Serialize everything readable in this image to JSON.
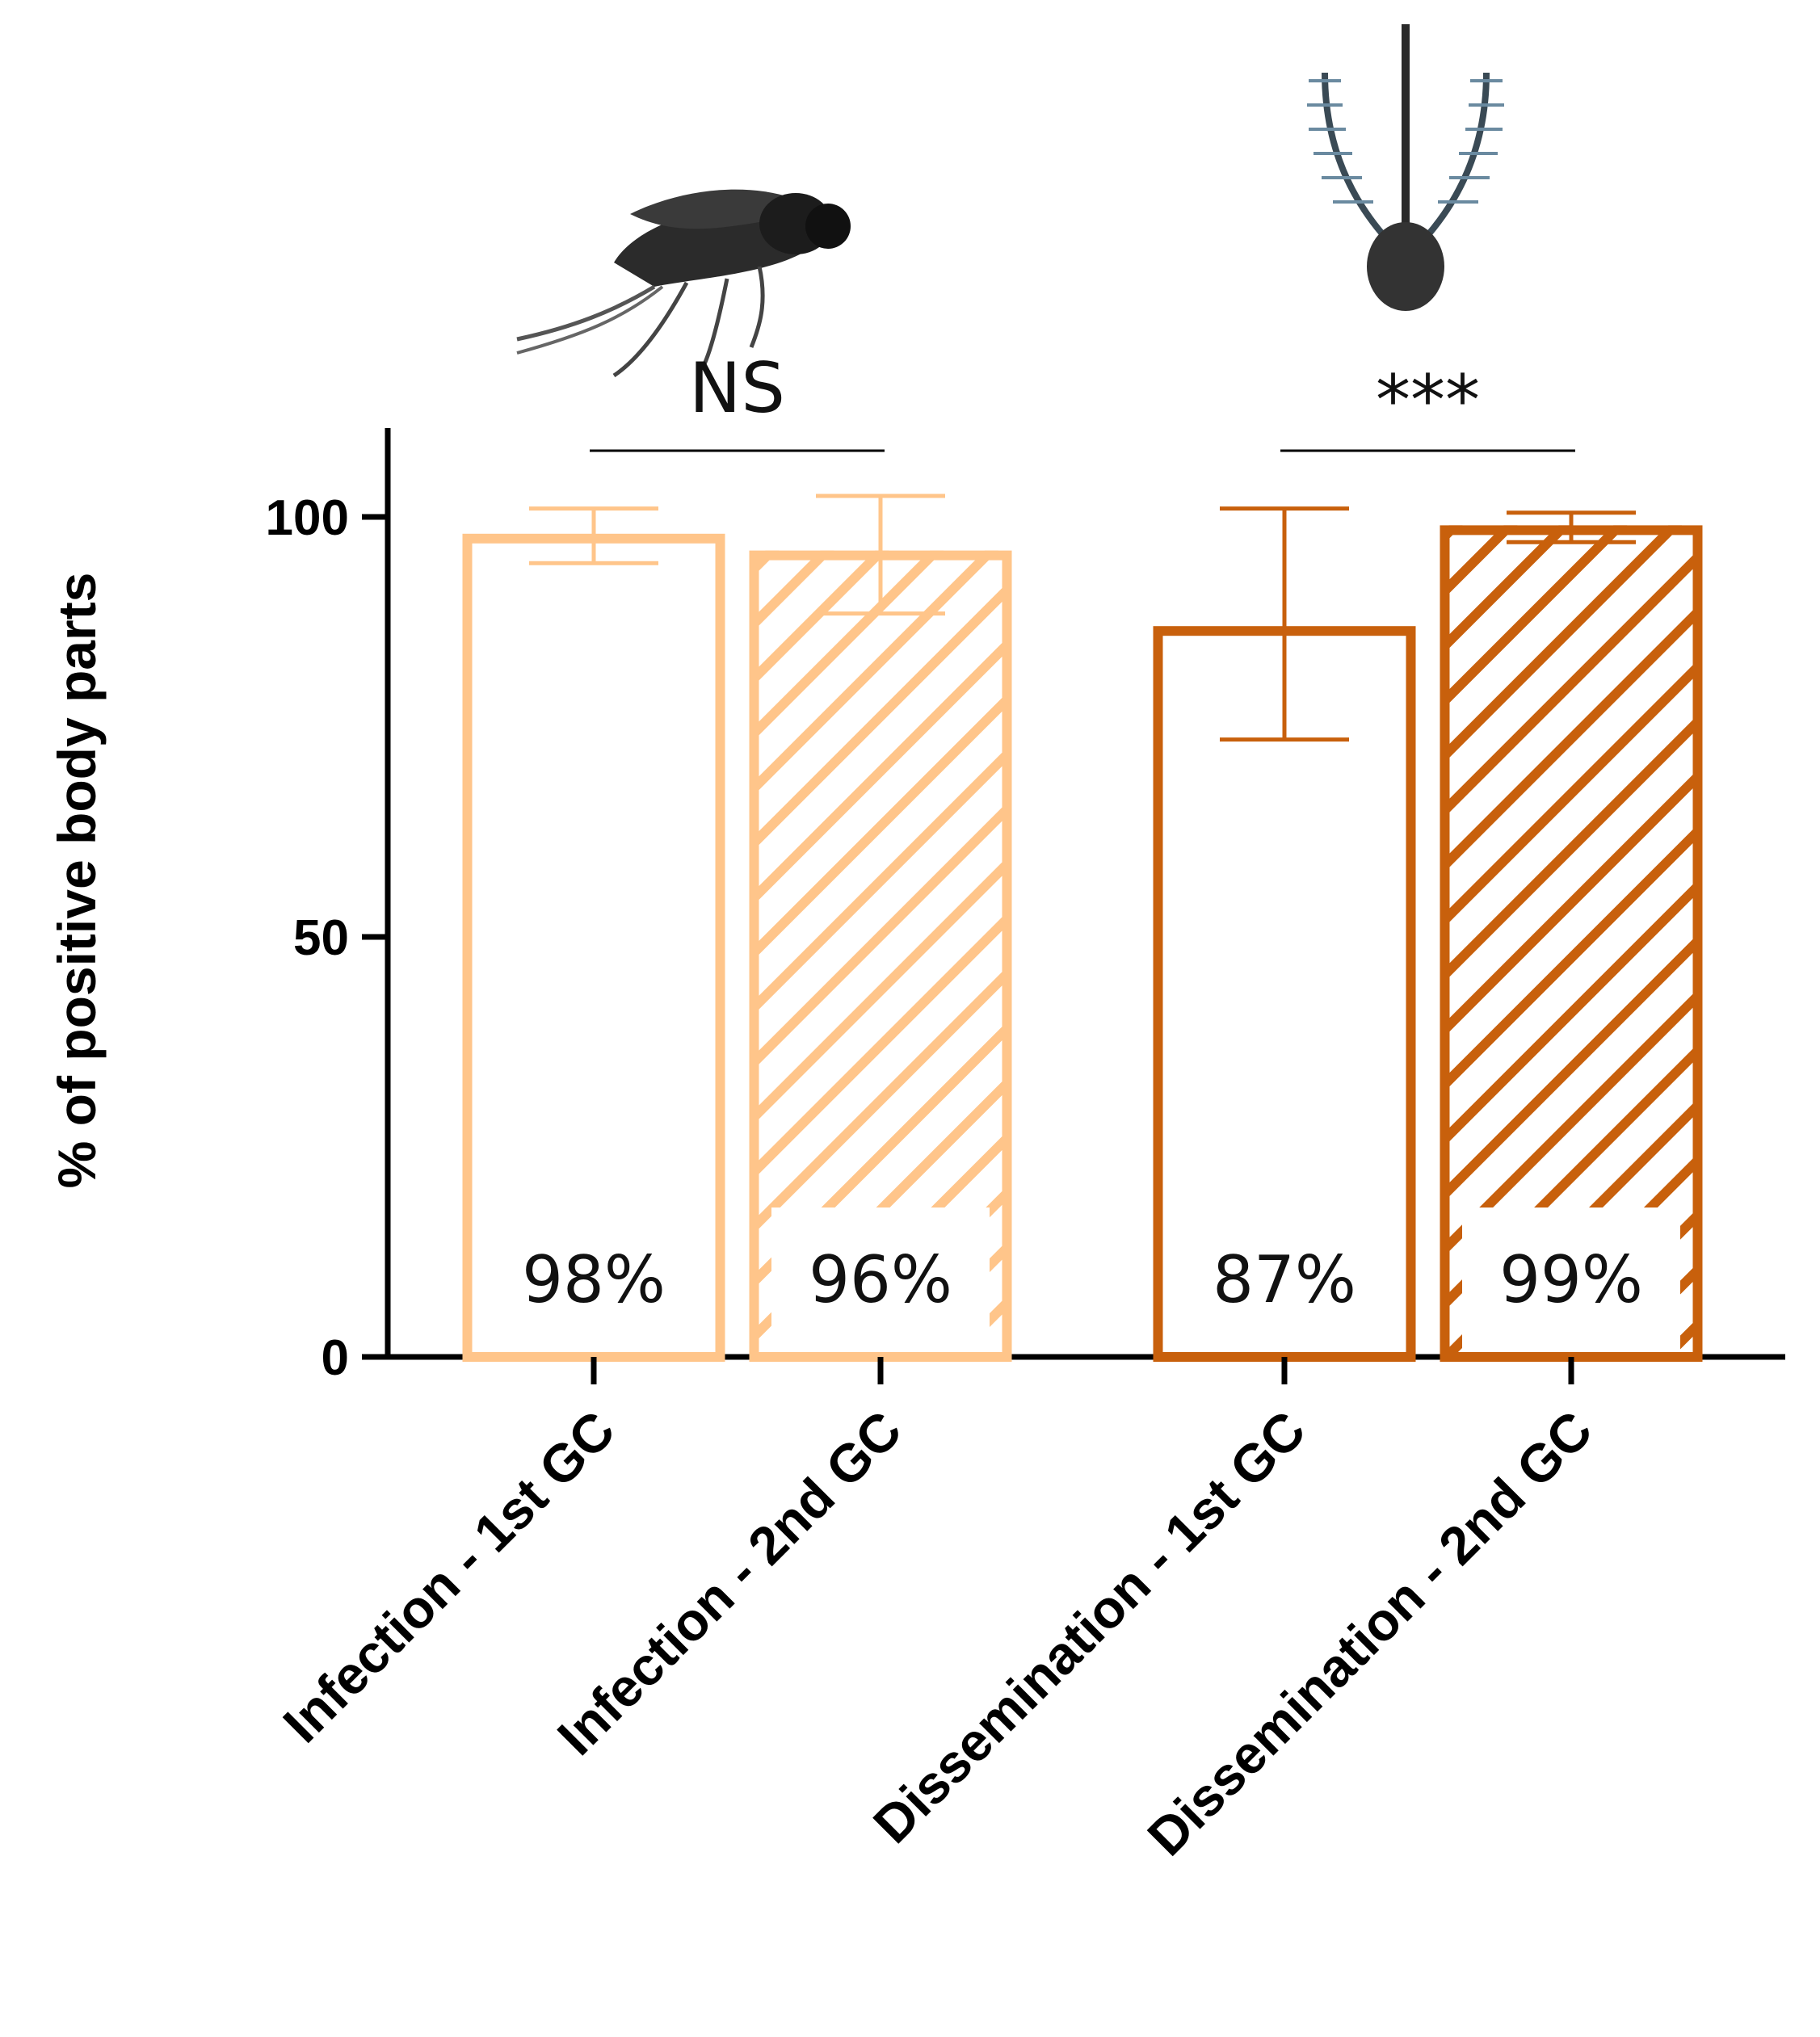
{
  "chart_data": {
    "type": "bar",
    "title": "",
    "xlabel": "",
    "ylabel": "% of positive body parts",
    "ylim": [
      0,
      110
    ],
    "yticks": [
      0,
      50,
      100
    ],
    "grid": false,
    "categories": [
      "Infection - 1st GC",
      "Infection - 2nd GC",
      "Dissemination - 1st GC",
      "Dissemination - 2nd GC"
    ],
    "values": [
      98,
      96,
      87,
      99
    ],
    "data_labels": [
      "98%",
      "96%",
      "87%",
      "99%"
    ],
    "error_bars": [
      {
        "low": 94.5,
        "high": 101
      },
      {
        "low": 88.5,
        "high": 102.5
      },
      {
        "low": 73.5,
        "high": 101
      },
      {
        "low": 97,
        "high": 100.5
      }
    ],
    "styles": [
      {
        "color": "#FFC58A",
        "fill": "solid",
        "hatched": false
      },
      {
        "color": "#FFC58A",
        "fill": "hatched",
        "hatched": true
      },
      {
        "color": "#C8600C",
        "fill": "solid",
        "hatched": false
      },
      {
        "color": "#C8600C",
        "fill": "hatched",
        "hatched": true
      }
    ],
    "annotations": [
      {
        "text": "NS",
        "between": [
          0,
          1
        ],
        "icon": "mosquito-icon"
      },
      {
        "text": "***",
        "between": [
          2,
          3
        ],
        "icon": "mosquito-head-icon"
      }
    ]
  }
}
